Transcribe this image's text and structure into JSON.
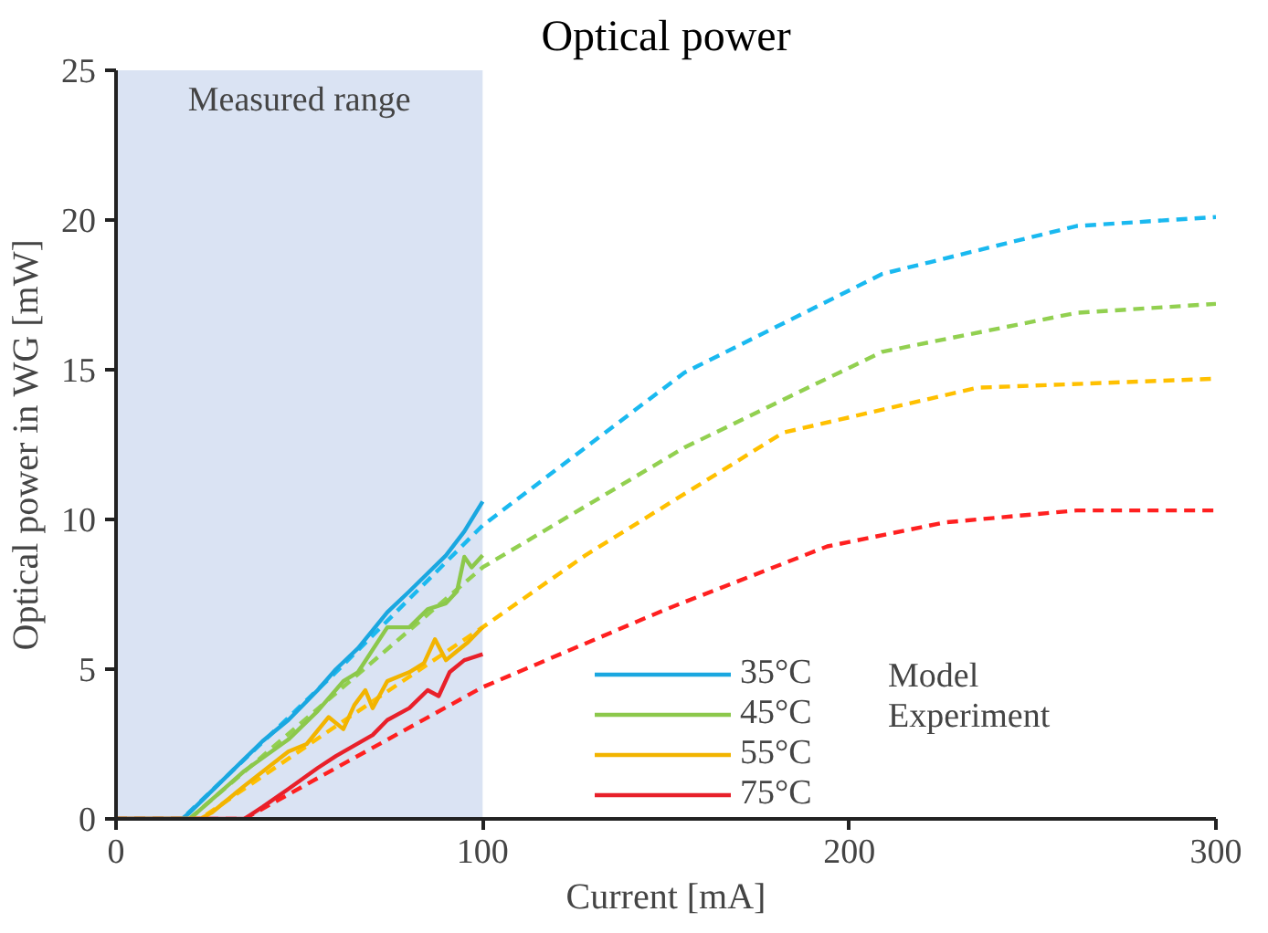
{
  "chart_data": {
    "type": "line",
    "title": "Optical power",
    "xlabel": "Current [mA]",
    "ylabel": "Optical power in WG [mW]",
    "xlim": [
      0,
      300
    ],
    "ylim": [
      0,
      25
    ],
    "xticks": [
      0,
      100,
      200,
      300
    ],
    "yticks": [
      0,
      5,
      10,
      15,
      20,
      25
    ],
    "grid": false,
    "legend": "bottom right",
    "line_style": "solid",
    "bands": [
      {
        "axis": "x",
        "from": 0,
        "to": 100,
        "label": "Measured range",
        "color": "#dae3f3"
      }
    ],
    "annotations": [
      "Model",
      "Experiment"
    ],
    "series": [
      {
        "color": "#1ab9f0",
        "line_style": "dashed",
        "x": [
          0,
          18,
          60,
          100,
          155,
          209,
          262,
          300
        ],
        "values": [
          0,
          0,
          4.9,
          9.8,
          14.9,
          18.2,
          19.8,
          20.1
        ]
      },
      {
        "color": "#92d050",
        "line_style": "dashed",
        "x": [
          0,
          20,
          60,
          100,
          155,
          209,
          262,
          300
        ],
        "values": [
          0,
          0,
          4.2,
          8.4,
          12.4,
          15.6,
          16.9,
          17.2
        ]
      },
      {
        "color": "#ffc000",
        "line_style": "dashed",
        "x": [
          0,
          23,
          60,
          100,
          128,
          182,
          235,
          300
        ],
        "values": [
          0,
          0,
          3.1,
          6.4,
          8.8,
          12.9,
          14.4,
          14.7
        ]
      },
      {
        "color": "#ff2020",
        "line_style": "dashed",
        "x": [
          0,
          35,
          60,
          100,
          150,
          194,
          226,
          262,
          300
        ],
        "values": [
          0,
          0,
          1.7,
          4.4,
          7.0,
          9.1,
          9.9,
          10.3,
          10.3
        ]
      },
      {
        "name": "35°C",
        "color": "#1aa7e0",
        "x": [
          0,
          18,
          20,
          30,
          40,
          47,
          55,
          60,
          66,
          74,
          80,
          85,
          90,
          95,
          100
        ],
        "values": [
          0,
          0,
          0.2,
          1.4,
          2.6,
          3.3,
          4.3,
          5.0,
          5.7,
          6.9,
          7.6,
          8.2,
          8.8,
          9.6,
          10.6
        ]
      },
      {
        "name": "45°C",
        "color": "#8cc84b",
        "x": [
          0,
          20,
          22,
          35,
          47,
          55,
          62,
          66,
          74,
          80,
          85,
          90,
          93,
          95,
          97,
          100
        ],
        "values": [
          0,
          0,
          0.2,
          1.6,
          2.65,
          3.6,
          4.6,
          4.9,
          6.4,
          6.4,
          7.0,
          7.2,
          7.6,
          8.75,
          8.4,
          8.8
        ]
      },
      {
        "name": "55°C",
        "color": "#f2b400",
        "x": [
          0,
          23,
          26,
          35,
          47,
          52,
          58,
          62,
          65,
          68,
          70,
          74,
          80,
          84,
          87,
          90,
          93,
          96,
          100
        ],
        "values": [
          0,
          0,
          0.2,
          1.1,
          2.25,
          2.5,
          3.4,
          3.0,
          3.8,
          4.3,
          3.7,
          4.6,
          4.9,
          5.2,
          6.0,
          5.3,
          5.6,
          5.9,
          6.4
        ]
      },
      {
        "name": "75°C",
        "color": "#e8202a",
        "x": [
          0,
          35,
          40,
          47,
          55,
          60,
          65,
          70,
          74,
          80,
          85,
          88,
          91,
          95,
          100
        ],
        "values": [
          0,
          0,
          0.4,
          1.0,
          1.7,
          2.1,
          2.45,
          2.8,
          3.3,
          3.7,
          4.3,
          4.1,
          4.9,
          5.3,
          5.5
        ]
      }
    ]
  }
}
